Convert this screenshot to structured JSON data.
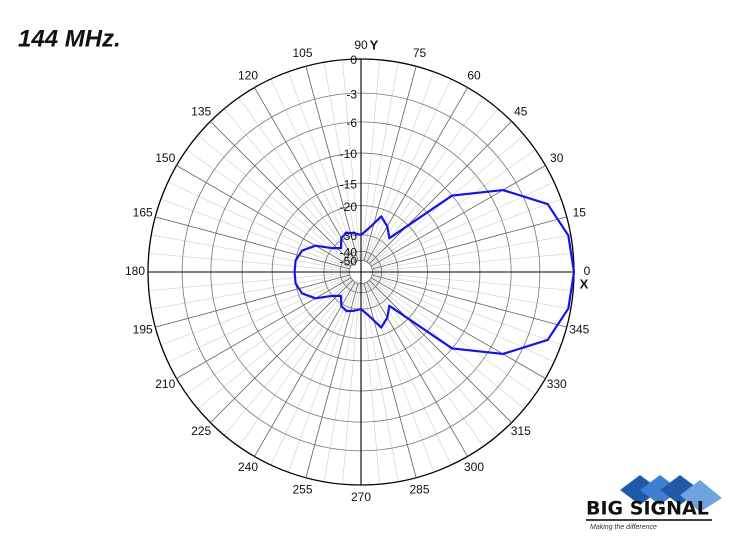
{
  "chart_data": {
    "type": "polar",
    "title": "144 MHz.",
    "x_axis_label": "X",
    "y_axis_label": "Y",
    "radial_scale": "ARRL log",
    "xticks": [
      0,
      15,
      30,
      45,
      60,
      75,
      90,
      105,
      120,
      135,
      150,
      165,
      180,
      195,
      210,
      225,
      240,
      255,
      270,
      285,
      300,
      315,
      330,
      345
    ],
    "rticks": [
      0,
      -3,
      -6,
      -10,
      -15,
      -20,
      -30,
      -40,
      -50
    ],
    "grid": true,
    "x": [
      0,
      10,
      20,
      30,
      40,
      50,
      60,
      70,
      80,
      90,
      100,
      110,
      120,
      130,
      140,
      150,
      160,
      170,
      180,
      190,
      200,
      210,
      220,
      230,
      240,
      250,
      260,
      270,
      280,
      290,
      300,
      310,
      320,
      330,
      340,
      350
    ],
    "series": [
      {
        "color": "#1414e6",
        "values": [
          0,
          -0.2,
          -1.2,
          -4.5,
          -10,
          -27,
          -24,
          -22,
          -27,
          -30,
          -29,
          -28,
          -29,
          -33,
          -30,
          -24,
          -21,
          -20,
          -20,
          -20,
          -21,
          -24,
          -30,
          -33,
          -29,
          -28,
          -29,
          -30,
          -27,
          -22,
          -24,
          -27,
          -10,
          -4.5,
          -1.2,
          -0.2
        ]
      }
    ],
    "logo": {
      "text": "BIG SIGNAL",
      "tagline": "Making the difference"
    }
  }
}
